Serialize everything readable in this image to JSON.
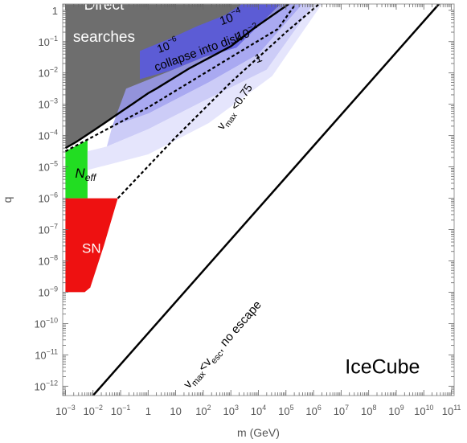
{
  "chart_data": {
    "type": "area",
    "title": "",
    "xlabel": "m (GeV)",
    "ylabel": "q",
    "x_scale": "log",
    "y_scale": "log",
    "xlim_log10": [
      -3.1,
      11.1
    ],
    "ylim_log10": [
      -12.3,
      0.2
    ],
    "x_tick_labels": [
      {
        "log10": -3,
        "text": "10",
        "sup": "−3"
      },
      {
        "log10": -2,
        "text": "10",
        "sup": "−2"
      },
      {
        "log10": -1,
        "text": "10",
        "sup": "−1"
      },
      {
        "log10": 0,
        "text": "1",
        "sup": ""
      },
      {
        "log10": 1,
        "text": "10",
        "sup": ""
      },
      {
        "log10": 2,
        "text": "10",
        "sup": "2"
      },
      {
        "log10": 3,
        "text": "10",
        "sup": "3"
      },
      {
        "log10": 4,
        "text": "10",
        "sup": "4"
      },
      {
        "log10": 5,
        "text": "10",
        "sup": "5"
      },
      {
        "log10": 6,
        "text": "10",
        "sup": "6"
      },
      {
        "log10": 7,
        "text": "10",
        "sup": "7"
      },
      {
        "log10": 8,
        "text": "10",
        "sup": "8"
      },
      {
        "log10": 9,
        "text": "10",
        "sup": "9"
      },
      {
        "log10": 10,
        "text": "10",
        "sup": "10"
      },
      {
        "log10": 11,
        "text": "10",
        "sup": "11"
      }
    ],
    "y_tick_labels": [
      {
        "log10": 0,
        "text": "1",
        "sup": ""
      },
      {
        "log10": -1,
        "text": "10",
        "sup": "−1"
      },
      {
        "log10": -2,
        "text": "10",
        "sup": "−2"
      },
      {
        "log10": -3,
        "text": "10",
        "sup": "−3"
      },
      {
        "log10": -4,
        "text": "10",
        "sup": "−4"
      },
      {
        "log10": -5,
        "text": "10",
        "sup": "−5"
      },
      {
        "log10": -6,
        "text": "10",
        "sup": "−6"
      },
      {
        "log10": -7,
        "text": "10",
        "sup": "−7"
      },
      {
        "log10": -8,
        "text": "10",
        "sup": "−8"
      },
      {
        "log10": -9,
        "text": "10",
        "sup": "−9"
      },
      {
        "log10": -10,
        "text": "10",
        "sup": "−10"
      },
      {
        "log10": -11,
        "text": "10",
        "sup": "−11"
      },
      {
        "log10": -12,
        "text": "10",
        "sup": "−12"
      }
    ],
    "regions": [
      {
        "name": "Direct searches",
        "color": "#6e6e6e",
        "points_log10": [
          [
            -3,
            -4.4
          ],
          [
            -2.6,
            -4.2
          ],
          [
            -2,
            -3.85
          ],
          [
            -1.5,
            -3.55
          ],
          [
            -1,
            -3.25
          ],
          [
            -0.5,
            -2.95
          ],
          [
            0,
            -2.65
          ],
          [
            0.3,
            -2.5
          ],
          [
            1.5,
            -1.85
          ],
          [
            3,
            -1.15
          ],
          [
            3.8,
            -0.6
          ],
          [
            5.1,
            0.2
          ],
          [
            -3,
            0.2
          ]
        ]
      },
      {
        "name": "N_eff",
        "color": "#22dd22",
        "points_log10": [
          [
            -3,
            -6
          ],
          [
            -2.2,
            -6
          ],
          [
            -2.2,
            -4.15
          ],
          [
            -3,
            -4.5
          ]
        ]
      },
      {
        "name": "SN",
        "color": "#ee1111",
        "points_log10": [
          [
            -3,
            -9
          ],
          [
            -2.3,
            -9
          ],
          [
            -2.1,
            -8.85
          ],
          [
            -1.6,
            -7.5
          ],
          [
            -1.1,
            -6
          ],
          [
            -3,
            -6
          ]
        ]
      },
      {
        "name": "collapse 10^-4",
        "color": "#5a5ae0",
        "opacity": 0.9,
        "points_log10": [
          [
            -0.3,
            -1.3
          ],
          [
            0.8,
            -0.9
          ],
          [
            1.8,
            -0.5
          ],
          [
            2.8,
            -0.15
          ],
          [
            3.4,
            0.2
          ],
          [
            4.8,
            0.2
          ],
          [
            3.2,
            -1.2
          ],
          [
            2,
            -1.5
          ],
          [
            0.9,
            -1.9
          ],
          [
            -0.3,
            -2.2
          ]
        ]
      },
      {
        "name": "collapse 10^-6",
        "color": "#9a9aee",
        "opacity": 0.85,
        "points_log10": [
          [
            -0.8,
            -2.5
          ],
          [
            0.9,
            -1.9
          ],
          [
            2,
            -1.5
          ],
          [
            3.2,
            -1.2
          ],
          [
            4.8,
            0.2
          ],
          [
            5.6,
            0.2
          ],
          [
            4,
            -1.4
          ],
          [
            2.2,
            -2.3
          ],
          [
            0,
            -3.3
          ],
          [
            -1.3,
            -3.7
          ]
        ]
      },
      {
        "name": "collapse 10^-2",
        "color": "#c3c3f6",
        "opacity": 0.85,
        "points_log10": [
          [
            -1.3,
            -3.7
          ],
          [
            0,
            -3.3
          ],
          [
            2.2,
            -2.3
          ],
          [
            4,
            -1.4
          ],
          [
            5.6,
            0.2
          ],
          [
            6,
            0.2
          ],
          [
            4.3,
            -1.9
          ],
          [
            2,
            -2.9
          ],
          [
            0,
            -3.8
          ],
          [
            -1.5,
            -4.35
          ]
        ]
      },
      {
        "name": "collapse 1",
        "color": "#e0e0fb",
        "opacity": 0.85,
        "points_log10": [
          [
            -1.5,
            -4.35
          ],
          [
            0,
            -3.8
          ],
          [
            2,
            -2.9
          ],
          [
            4.3,
            -1.9
          ],
          [
            6,
            0.2
          ],
          [
            6.3,
            0.2
          ],
          [
            4.5,
            -2.1
          ],
          [
            2.2,
            -3.6
          ],
          [
            0,
            -4.6
          ],
          [
            -2.2,
            -5.1
          ],
          [
            -2.2,
            -4.5
          ]
        ]
      }
    ],
    "lines": [
      {
        "name": "collapse into disk",
        "style": "dashed",
        "width": 2.2,
        "points_log10": [
          [
            -3,
            -4.5
          ],
          [
            0,
            -3.1
          ],
          [
            3,
            -1.5
          ],
          [
            4.7,
            -0.6
          ],
          [
            5.35,
            0.2
          ]
        ]
      },
      {
        "name": "v_max < 0.75",
        "style": "dashed",
        "width": 2.2,
        "points_log10": [
          [
            -1.1,
            -6
          ],
          [
            1,
            -4.05
          ],
          [
            3,
            -2.3
          ],
          [
            5,
            -0.7
          ],
          [
            6.2,
            0.2
          ]
        ]
      },
      {
        "name": "v_max < v_esc, no escape",
        "style": "solid",
        "width": 2.5,
        "points_log10": [
          [
            -2.0,
            -12.3
          ],
          [
            10.55,
            0.2
          ]
        ]
      }
    ],
    "annotations": [
      {
        "id": "direct",
        "text": "Direct",
        "log10": [
          -1.6,
          0.02
        ],
        "color": "#ffffff",
        "size": 19,
        "rotate": 0
      },
      {
        "id": "searches",
        "text": "searches",
        "log10": [
          -1.6,
          -1.0
        ],
        "color": "#ffffff",
        "size": 19,
        "rotate": 0
      },
      {
        "id": "collapse",
        "text": "collapse into disk",
        "log10": [
          1.85,
          -1.45
        ],
        "color": "#000000",
        "size": 15,
        "rotate": -20
      },
      {
        "id": "lab_1e4",
        "text": "10",
        "sup": "−4",
        "log10": [
          3.05,
          -0.35
        ],
        "color": "#000000",
        "size": 15,
        "rotate": -20
      },
      {
        "id": "lab_1e6",
        "text": "10",
        "sup": "−6",
        "log10": [
          0.75,
          -1.25
        ],
        "color": "#000000",
        "size": 14,
        "rotate": -20
      },
      {
        "id": "lab_1e2",
        "text": "10",
        "sup": "−2",
        "log10": [
          3.65,
          -0.85
        ],
        "color": "#000000",
        "size": 15,
        "rotate": -20
      },
      {
        "id": "lab_1",
        "text": "1",
        "log10": [
          4.05,
          -1.65
        ],
        "color": "#000000",
        "size": 15,
        "rotate": -20
      },
      {
        "id": "vmax075",
        "text": "v",
        "sub": "max",
        "tail": " <0.75",
        "log10": [
          3.25,
          -3.15
        ],
        "color": "#000000",
        "size": 14,
        "rotate": -55
      },
      {
        "id": "neff",
        "text": "N",
        "sub": "eff",
        "log10": [
          -2.65,
          -5.35
        ],
        "color": "#000000",
        "size": 17,
        "rotate": 0,
        "italic": true
      },
      {
        "id": "sn",
        "text": "SN",
        "log10": [
          -2.4,
          -7.75
        ],
        "color": "#ffffff",
        "size": 17,
        "rotate": 0
      },
      {
        "id": "vesc",
        "text": "v",
        "sub": "max",
        "mid": "<v",
        "sub2": "esc",
        "tail": ", no escape",
        "log10": [
          2.8,
          -10.75
        ],
        "color": "#000000",
        "size": 15,
        "rotate": -49
      },
      {
        "id": "icecube",
        "text": "IceCube",
        "log10": [
          8.5,
          -11.6
        ],
        "color": "#000000",
        "size": 25,
        "rotate": 0
      }
    ],
    "grid": false,
    "legend": "none"
  }
}
